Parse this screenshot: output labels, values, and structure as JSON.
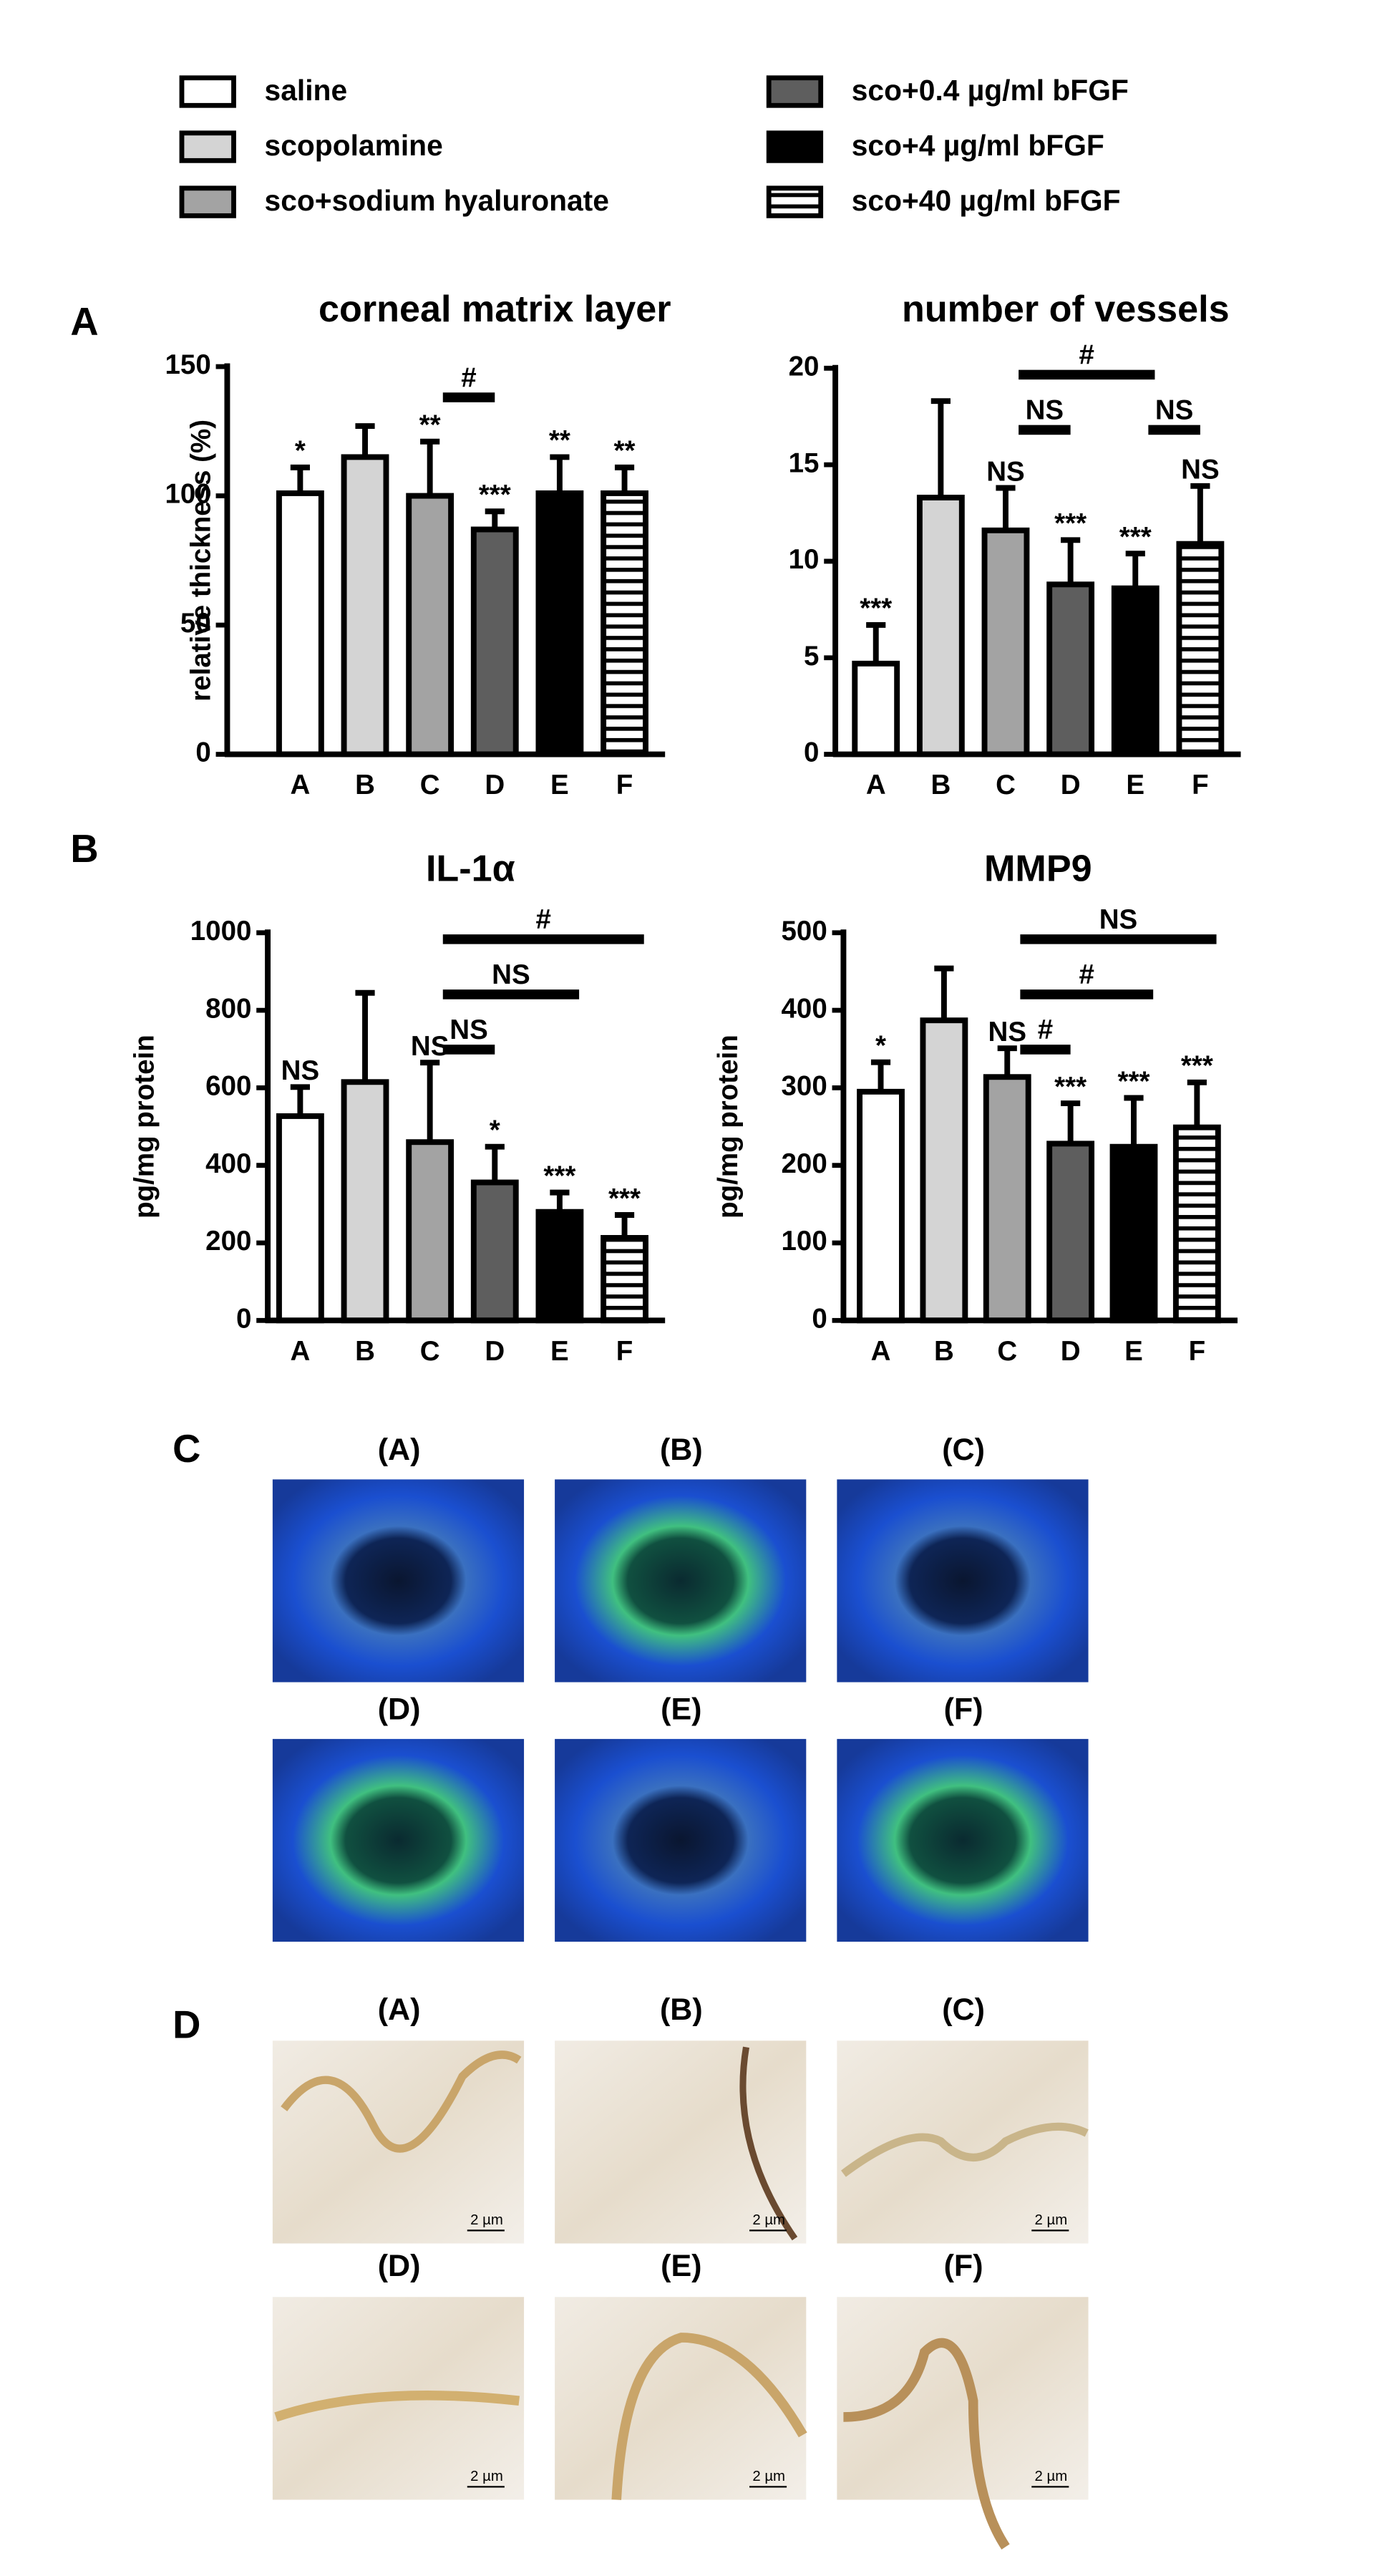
{
  "legend": {
    "names": [
      "saline",
      "scopolamine",
      "sco+sodium hyaluronate",
      "sco+0.4 µg/ml bFGF",
      "sco+4 µg/ml bFGF",
      "sco+40 µg/ml bFGF"
    ],
    "colors": [
      "#ffffff",
      "#d4d4d4",
      "#a3a3a3",
      "#5e5e5e",
      "#000000",
      "stripes"
    ]
  },
  "panels": [
    "A",
    "B",
    "C",
    "D"
  ],
  "fluorescence": {
    "labels": [
      "(A)",
      "(B)",
      "(C)",
      "(D)",
      "(E)",
      "(F)"
    ]
  },
  "histology": {
    "labels": [
      "(A)",
      "(B)",
      "(C)",
      "(D)",
      "(E)",
      "(F)"
    ],
    "scale_bar": "2 µm"
  },
  "chart_data": [
    {
      "type": "bar",
      "title": "corneal matrix layer",
      "ylabel": "relative thickness (%)",
      "categories": [
        "A",
        "B",
        "C",
        "D",
        "E",
        "F"
      ],
      "values": [
        101,
        115,
        100,
        87,
        101,
        101
      ],
      "errors": [
        10,
        12,
        21,
        7,
        14,
        10
      ],
      "significance": [
        "*",
        null,
        "**",
        "***",
        "**",
        "**"
      ],
      "brackets": [
        {
          "from": "C",
          "to": "D",
          "label": "#"
        }
      ],
      "ylim": [
        0,
        150
      ],
      "yticks": [
        0,
        50,
        100,
        150
      ]
    },
    {
      "type": "bar",
      "title": "number of vessels",
      "categories": [
        "A",
        "B",
        "C",
        "D",
        "E",
        "F"
      ],
      "values": [
        4.7,
        13.3,
        11.6,
        8.8,
        8.6,
        10.9
      ],
      "errors": [
        2,
        5,
        2.2,
        2.3,
        1.8,
        3
      ],
      "significance": [
        "***",
        null,
        "NS",
        "***",
        "***",
        "NS"
      ],
      "brackets": [
        {
          "from": "C",
          "to": "E",
          "label": "#"
        },
        {
          "from": "C",
          "to": "D",
          "label": "NS"
        },
        {
          "from": "E",
          "to": "F",
          "label": "NS"
        }
      ],
      "ylim": [
        0,
        20
      ],
      "yticks": [
        0,
        5,
        10,
        15,
        20
      ]
    },
    {
      "type": "bar",
      "title": "IL-1α",
      "ylabel": "pg/mg protein",
      "categories": [
        "A",
        "B",
        "C",
        "D",
        "E",
        "F"
      ],
      "values": [
        527,
        615,
        460,
        356,
        280,
        213
      ],
      "errors": [
        75,
        230,
        205,
        92,
        50,
        59
      ],
      "significance": [
        "NS",
        null,
        "NS",
        "*",
        "***",
        "***"
      ],
      "brackets": [
        {
          "from": "C",
          "to": "F",
          "label": "#"
        },
        {
          "from": "C",
          "to": "E",
          "label": "NS"
        },
        {
          "from": "C",
          "to": "D",
          "label": "NS"
        }
      ],
      "ylim": [
        0,
        1000
      ],
      "yticks": [
        0,
        200,
        400,
        600,
        800,
        1000
      ]
    },
    {
      "type": "bar",
      "title": "MMP9",
      "ylabel": "pg/mg protein",
      "categories": [
        "A",
        "B",
        "C",
        "D",
        "E",
        "F"
      ],
      "values": [
        295,
        387,
        314,
        228,
        224,
        249
      ],
      "errors": [
        38,
        67,
        37,
        52,
        63,
        58
      ],
      "significance": [
        "*",
        null,
        "NS",
        "***",
        "***",
        "***"
      ],
      "brackets": [
        {
          "from": "C",
          "to": "F",
          "label": "NS"
        },
        {
          "from": "C",
          "to": "E",
          "label": "#"
        },
        {
          "from": "C",
          "to": "D",
          "label": "#"
        }
      ],
      "ylim": [
        0,
        500
      ],
      "yticks": [
        0,
        100,
        200,
        300,
        400,
        500
      ]
    }
  ]
}
